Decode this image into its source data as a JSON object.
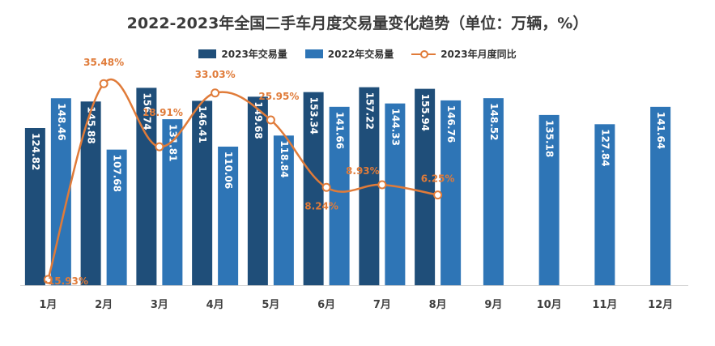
{
  "chart_data": {
    "type": "bar",
    "title": "2022-2023年全国二手车月度交易量变化趋势（单位：万辆，%）",
    "categories": [
      "1月",
      "2月",
      "3月",
      "4月",
      "5月",
      "6月",
      "7月",
      "8月",
      "9月",
      "10月",
      "11月",
      "12月"
    ],
    "series": [
      {
        "name": "2023年交易量",
        "type": "bar",
        "color": "#1f4e79",
        "values": [
          124.82,
          145.88,
          156.74,
          146.41,
          149.68,
          153.34,
          157.22,
          155.94,
          null,
          null,
          null,
          null
        ],
        "labels": [
          "124.82",
          "145.88",
          "156.74",
          "146.41",
          "149.68",
          "153.34",
          "157.22",
          "155.94",
          "",
          "",
          "",
          ""
        ]
      },
      {
        "name": "2022年交易量",
        "type": "bar",
        "color": "#2e75b6",
        "values": [
          148.46,
          107.68,
          131.81,
          110.06,
          118.84,
          141.66,
          144.33,
          146.76,
          148.52,
          135.18,
          127.84,
          141.64
        ],
        "labels": [
          "148.46",
          "107.68",
          "131.81",
          "110.06",
          "118.84",
          "141.66",
          "144.33",
          "146.76",
          "148.52",
          "135.18",
          "127.84",
          "141.64"
        ]
      },
      {
        "name": "2023年月度同比",
        "type": "line",
        "color": "#e07b39",
        "values": [
          -15.93,
          35.48,
          18.91,
          33.03,
          25.95,
          8.24,
          8.93,
          6.25,
          null,
          null,
          null,
          null
        ],
        "labels": [
          "-15.93%",
          "35.48%",
          "18.91%",
          "33.03%",
          "25.95%",
          "8.24%",
          "8.93%",
          "6.25%",
          "",
          "",
          "",
          ""
        ]
      }
    ],
    "ylim_bars": [
      0,
      175
    ],
    "ylim_line": [
      -20,
      40
    ],
    "grid": false,
    "legend_position": "top"
  }
}
